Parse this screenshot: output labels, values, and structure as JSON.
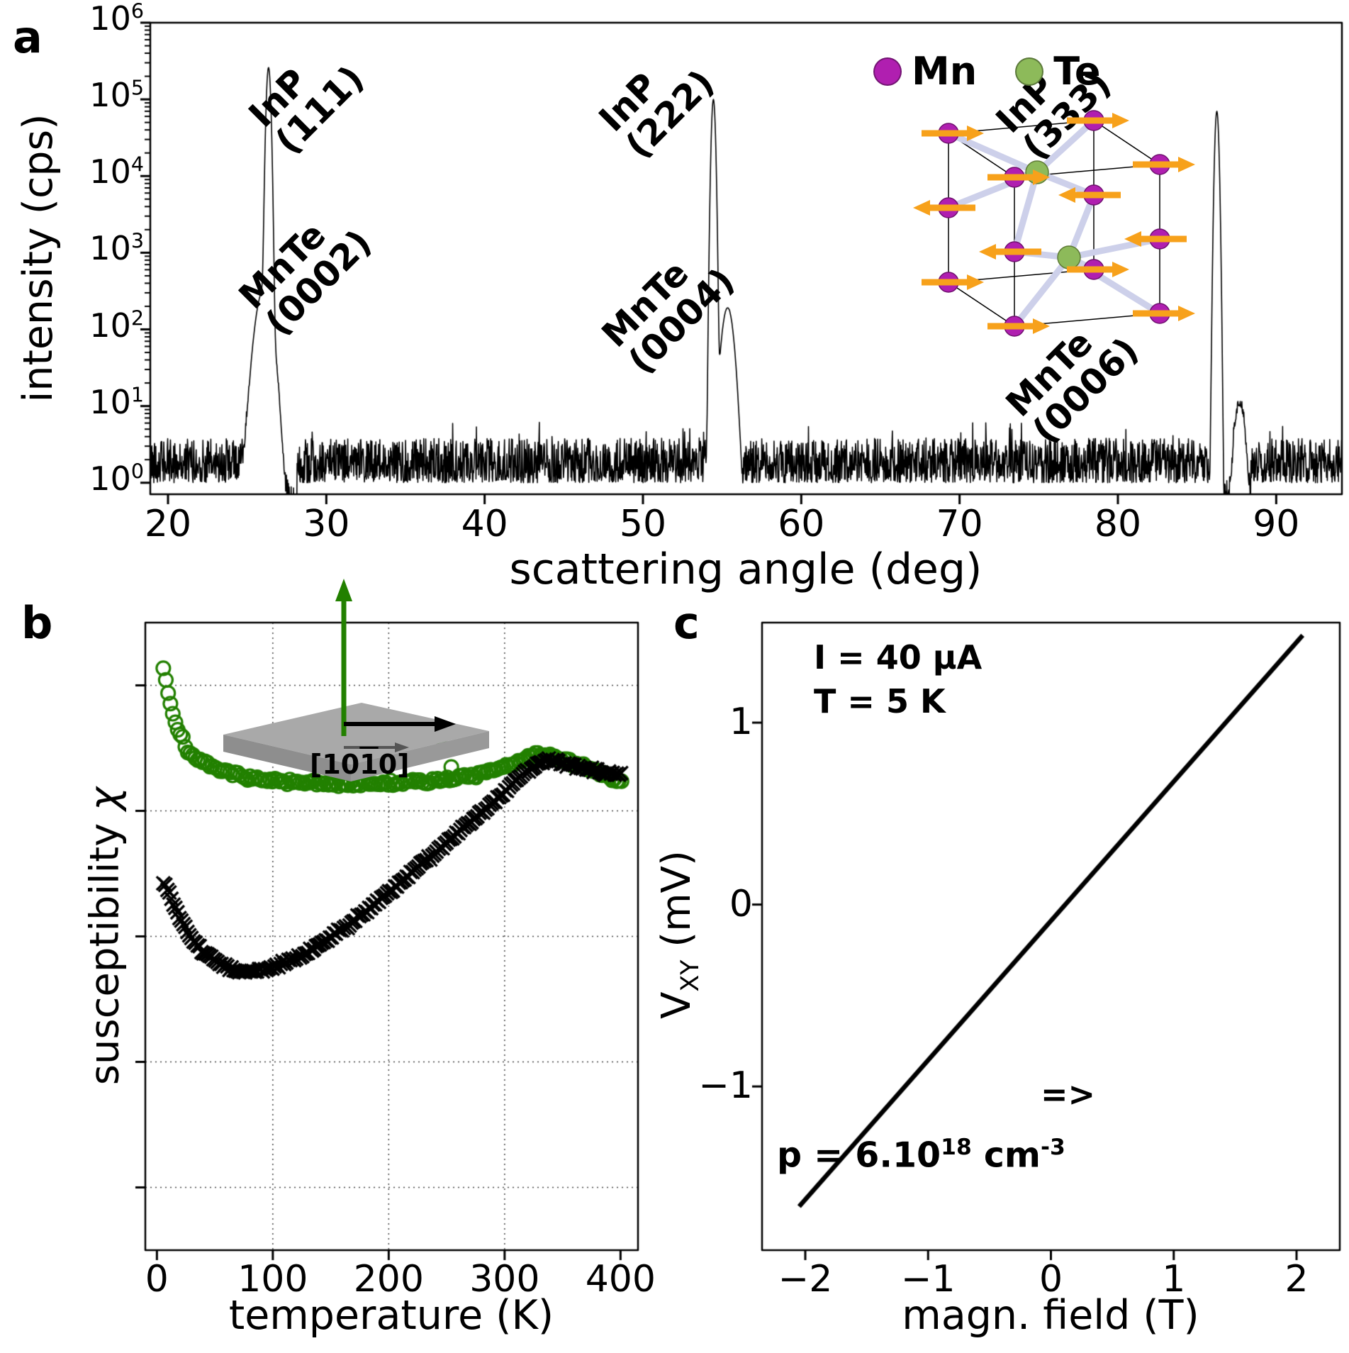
{
  "panels": {
    "a": "a",
    "b": "b",
    "c": "c"
  },
  "colors": {
    "trace": "#000000",
    "series_green": "#228000",
    "series_black": "#000000",
    "mn": "#b01fb0",
    "te": "#8dba5a",
    "arrow": "#f7a11b",
    "bond": "#cdd0ea",
    "cell_edge": "#000000",
    "slab": "#a9a9a9",
    "slab_dark": "#8e8e8e",
    "grid": "#444444"
  },
  "chart_data": [
    {
      "id": "xrd",
      "type": "line",
      "xlabel": "scattering angle (deg)",
      "ylabel": "intensity (cps)",
      "xlim": [
        18.88,
        94.15
      ],
      "xticks": [
        20,
        30,
        40,
        50,
        60,
        70,
        80,
        90
      ],
      "yscale": "log",
      "ylim_exponents": [
        -0.15,
        6
      ],
      "ytick_exponents": [
        0,
        1,
        2,
        3,
        4,
        5,
        6
      ],
      "noise_floor_cps": [
        1,
        4
      ],
      "peaks": [
        {
          "name": "InP (111)",
          "center": 26.35,
          "height_cps": 260000,
          "width_deg": 0.1
        },
        {
          "name": "MnTe (0002)",
          "center": 26.05,
          "height_cps": 330,
          "width_deg": 0.38
        },
        {
          "name": "InP (222)",
          "center": 54.45,
          "height_cps": 100000,
          "width_deg": 0.09
        },
        {
          "name": "MnTe (0004)",
          "center": 55.35,
          "height_cps": 190,
          "width_deg": 0.28
        },
        {
          "name": "InP (333)",
          "center": 86.25,
          "height_cps": 70000,
          "width_deg": 0.09
        },
        {
          "name": "MnTe (0006)",
          "center": 87.7,
          "height_cps": 9,
          "width_deg": 0.25
        }
      ],
      "below_floor_windows_deg": [
        [
          25.15,
          25.75
        ],
        [
          27.05,
          28.15
        ],
        [
          55.65,
          56.35
        ],
        [
          86.55,
          87.3
        ],
        [
          88.05,
          88.4
        ]
      ],
      "peak_labels": [
        {
          "line1": "InP",
          "line2": "(111)"
        },
        {
          "line1": "MnTe",
          "line2": "(0002)"
        },
        {
          "line1": "InP",
          "line2": "(222)"
        },
        {
          "line1": "MnTe",
          "line2": "(0004)"
        },
        {
          "line1": "InP",
          "line2": "(333)"
        },
        {
          "line1": "MnTe",
          "line2": "(0006)"
        }
      ],
      "legend": [
        {
          "label": "Mn",
          "color": "#b01fb0"
        },
        {
          "label": "Te",
          "color": "#8dba5a"
        }
      ]
    },
    {
      "id": "susceptibility",
      "type": "scatter",
      "xlabel": "temperature (K)",
      "ylabel": "susceptibility χ",
      "ylabel_parts": {
        "pre": "susceptibility ",
        "chi": "χ"
      },
      "xlim": [
        -10,
        415
      ],
      "xticks": [
        0,
        100,
        200,
        300,
        400
      ],
      "grid": true,
      "y_units": "normalized (y axis unlabeled)",
      "series": [
        {
          "name": "green open circles",
          "marker": "open-circle",
          "color": "#228000",
          "points": [
            [
              6,
              0.93
            ],
            [
              9,
              0.893
            ],
            [
              12,
              0.868
            ],
            [
              16,
              0.842
            ],
            [
              20,
              0.822
            ],
            [
              25,
              0.803
            ],
            [
              30,
              0.79
            ],
            [
              38,
              0.778
            ],
            [
              48,
              0.769
            ],
            [
              60,
              0.762
            ],
            [
              75,
              0.755
            ],
            [
              90,
              0.75
            ],
            [
              110,
              0.746
            ],
            [
              135,
              0.744
            ],
            [
              165,
              0.743
            ],
            [
              200,
              0.744
            ],
            [
              230,
              0.747
            ],
            [
              258,
              0.752
            ],
            [
              280,
              0.758
            ],
            [
              300,
              0.77
            ],
            [
              312,
              0.78
            ],
            [
              325,
              0.79
            ],
            [
              338,
              0.788
            ],
            [
              352,
              0.78
            ],
            [
              368,
              0.77
            ],
            [
              385,
              0.758
            ],
            [
              400,
              0.748
            ]
          ],
          "outliers": [
            [
              247,
              0.8
            ],
            [
              254,
              0.77
            ]
          ]
        },
        {
          "name": "black crosses",
          "marker": "x",
          "color": "#000000",
          "points": [
            [
              6,
              0.585
            ],
            [
              10,
              0.57
            ],
            [
              15,
              0.548
            ],
            [
              22,
              0.522
            ],
            [
              30,
              0.498
            ],
            [
              40,
              0.475
            ],
            [
              52,
              0.458
            ],
            [
              65,
              0.447
            ],
            [
              78,
              0.443
            ],
            [
              92,
              0.446
            ],
            [
              108,
              0.455
            ],
            [
              125,
              0.47
            ],
            [
              145,
              0.492
            ],
            [
              165,
              0.518
            ],
            [
              185,
              0.548
            ],
            [
              205,
              0.578
            ],
            [
              225,
              0.61
            ],
            [
              245,
              0.642
            ],
            [
              265,
              0.674
            ],
            [
              285,
              0.706
            ],
            [
              300,
              0.73
            ],
            [
              312,
              0.752
            ],
            [
              322,
              0.768
            ],
            [
              332,
              0.778
            ],
            [
              342,
              0.78
            ],
            [
              352,
              0.776
            ],
            [
              365,
              0.77
            ],
            [
              380,
              0.764
            ],
            [
              400,
              0.757
            ]
          ],
          "outliers": []
        }
      ],
      "inset": {
        "miller": {
          "pre": "[10",
          "bar": "1",
          "post": "0]"
        }
      }
    },
    {
      "id": "hall_voltage",
      "type": "line",
      "xlabel": "magn. field (T)",
      "ylabel": "V_XY (mV)",
      "ylabel_parts": {
        "base": "V",
        "sub": "XY",
        "rest": " (mV)"
      },
      "xlim": [
        -2.35,
        2.35
      ],
      "ylim": [
        -1.9,
        1.55
      ],
      "xticks": [
        -2,
        -1,
        0,
        1,
        2
      ],
      "yticks": [
        -1,
        0,
        1
      ],
      "line": {
        "x": [
          -2.05,
          2.05
        ],
        "y": [
          -1.66,
          1.48
        ]
      },
      "annotations": {
        "current": "I = 40 μA",
        "temperature": "T = 5 K",
        "arrow": "=>",
        "carrier": {
          "pre": "p = 6.10",
          "sup1": "18",
          "mid": " cm",
          "sup2": "-3"
        }
      }
    }
  ]
}
